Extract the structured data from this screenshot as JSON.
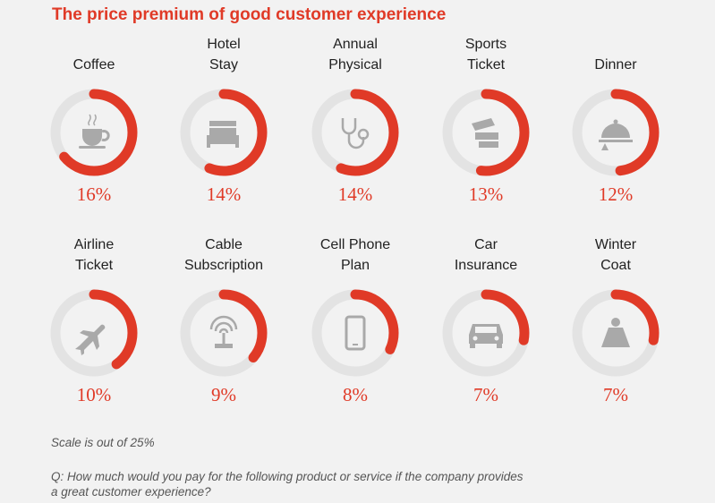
{
  "chart_data": {
    "type": "donut",
    "title": "The price premium of good customer experience",
    "scale_max": 25,
    "unit": "%",
    "colors": {
      "arc": "#e03a27",
      "track": "#e3e3e3",
      "icon": "#a9a9a9",
      "text": "#e03a27"
    },
    "items": [
      {
        "label_lines": [
          "Coffee"
        ],
        "value": 16,
        "display": "16%",
        "icon": "coffee-cup-icon"
      },
      {
        "label_lines": [
          "Hotel",
          "Stay"
        ],
        "value": 14,
        "display": "14%",
        "icon": "bed-icon"
      },
      {
        "label_lines": [
          "Annual",
          "Physical"
        ],
        "value": 14,
        "display": "14%",
        "icon": "stethoscope-icon"
      },
      {
        "label_lines": [
          "Sports",
          "Ticket"
        ],
        "value": 13,
        "display": "13%",
        "icon": "ticket-icon"
      },
      {
        "label_lines": [
          "Dinner"
        ],
        "value": 12,
        "display": "12%",
        "icon": "serving-cloche-icon"
      },
      {
        "label_lines": [
          "Airline",
          "Ticket"
        ],
        "value": 10,
        "display": "10%",
        "icon": "airplane-icon"
      },
      {
        "label_lines": [
          "Cable",
          "Subscription"
        ],
        "value": 9,
        "display": "9%",
        "icon": "antenna-icon"
      },
      {
        "label_lines": [
          "Cell Phone",
          "Plan"
        ],
        "value": 8,
        "display": "8%",
        "icon": "phone-icon"
      },
      {
        "label_lines": [
          "Car",
          "Insurance"
        ],
        "value": 7,
        "display": "7%",
        "icon": "car-icon"
      },
      {
        "label_lines": [
          "Winter",
          "Coat"
        ],
        "value": 7,
        "display": "7%",
        "icon": "coat-icon"
      }
    ]
  },
  "notes": {
    "scale": "Scale is out of 25%",
    "question_line1": "Q: How much would you pay for the following product or service if the company provides",
    "question_line2": "a great customer experience?"
  }
}
